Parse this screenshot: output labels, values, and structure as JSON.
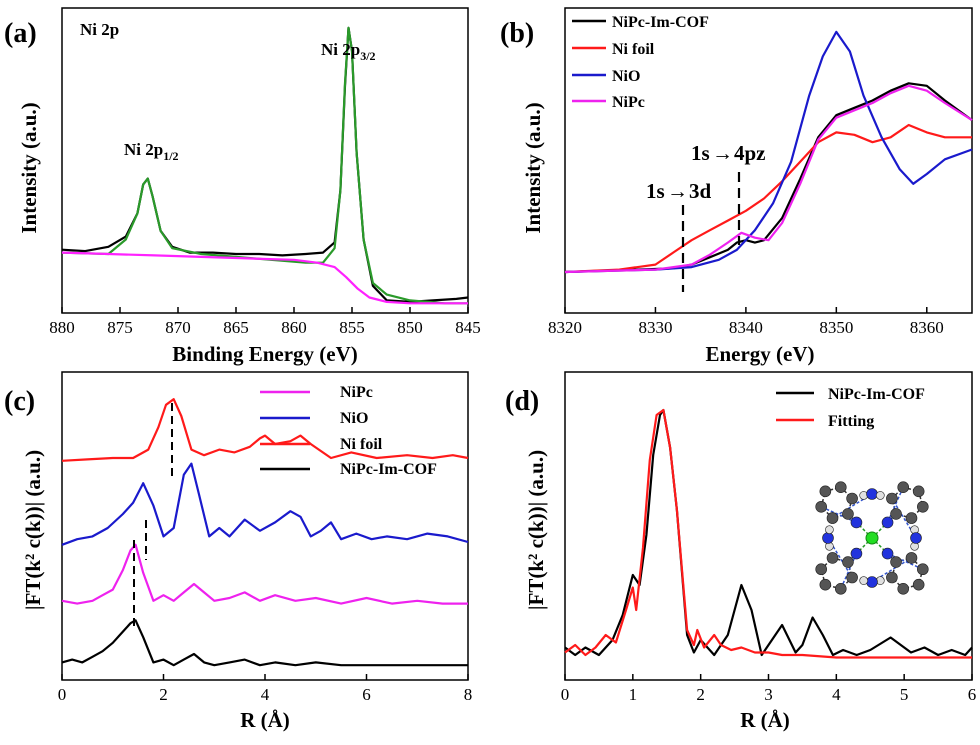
{
  "panels": {
    "a": {
      "letter": "(a)",
      "corner": "Ni 2p",
      "xlabel": "Binding Energy (eV)",
      "ylabel": "Intensity (a.u.)",
      "xticks": [
        "880",
        "875",
        "870",
        "865",
        "860",
        "855",
        "850",
        "845"
      ],
      "peak_major": "Ni 2p",
      "peak_major_sub": "3/2",
      "peak_minor": "Ni 2p",
      "peak_minor_sub": "1/2"
    },
    "b": {
      "letter": "(b)",
      "xlabel": "Energy (eV)",
      "ylabel": "Intensity (a.u.)",
      "xticks": [
        "8320",
        "8330",
        "8340",
        "8350",
        "8360"
      ],
      "ann1": "1s",
      "ann1b": "3d",
      "ann2": "1s",
      "ann2b": "4pz",
      "legend": [
        "NiPc-Im-COF",
        "Ni foil",
        "NiO",
        "NiPc"
      ]
    },
    "c": {
      "letter": "(c)",
      "xlabel": "R (Å)",
      "ylabel": "|FT(k² c(k))|  (a.u.)",
      "xticks": [
        "0",
        "2",
        "4",
        "6",
        "8"
      ],
      "legend": [
        "NiPc",
        "NiO",
        "Ni foil",
        "NiPc-Im-COF"
      ]
    },
    "d": {
      "letter": "(d)",
      "xlabel": "R (Å)",
      "ylabel": "|FT(k² c(k))|  (a.u.)",
      "xticks": [
        "0",
        "1",
        "2",
        "3",
        "4",
        "5",
        "6"
      ],
      "legend": [
        "NiPc-Im-COF",
        "Fitting"
      ]
    }
  },
  "colors": {
    "black": "#000000",
    "red": "#ff1a1a",
    "blue": "#1a1acc",
    "magenta": "#ee22ee",
    "green": "#2a9a2a",
    "pink": "#ff44ff"
  },
  "chart_data": [
    {
      "type": "line",
      "panel": "a",
      "x_reversed": true,
      "xlim": [
        880,
        845
      ],
      "xlabel": "Binding Energy (eV)",
      "ylabel": "Intensity (a.u.)",
      "series": [
        {
          "color": "#000000",
          "x": [
            880,
            878,
            876,
            874.5,
            873.5,
            873,
            872.6,
            872.2,
            871.5,
            870.5,
            869,
            867,
            865,
            863,
            861,
            859,
            857.5,
            856.5,
            856,
            855.6,
            855.3,
            855,
            854.6,
            854,
            853.2,
            852,
            850,
            848,
            846,
            845
          ],
          "y": [
            0.215,
            0.21,
            0.225,
            0.26,
            0.34,
            0.44,
            0.46,
            0.4,
            0.28,
            0.225,
            0.205,
            0.205,
            0.2,
            0.2,
            0.195,
            0.2,
            0.205,
            0.24,
            0.42,
            0.78,
            0.98,
            0.9,
            0.55,
            0.25,
            0.09,
            0.04,
            0.035,
            0.04,
            0.045,
            0.05
          ]
        },
        {
          "color": "#2a9a2a",
          "x": [
            880,
            876,
            874.5,
            873.5,
            873,
            872.6,
            872.2,
            871.5,
            870.5,
            868,
            865,
            862,
            859,
            857.5,
            856.5,
            856,
            855.6,
            855.3,
            855,
            854.6,
            854,
            853.2,
            852,
            850,
            847,
            845
          ],
          "y": [
            0.205,
            0.2,
            0.25,
            0.34,
            0.44,
            0.46,
            0.4,
            0.28,
            0.22,
            0.2,
            0.19,
            0.18,
            0.17,
            0.17,
            0.22,
            0.42,
            0.79,
            0.98,
            0.9,
            0.55,
            0.25,
            0.1,
            0.06,
            0.04,
            0.03,
            0.03
          ]
        },
        {
          "color": "#ff22ff",
          "x": [
            880,
            876,
            872,
            868,
            864,
            860,
            858,
            856.5,
            855.5,
            854.5,
            853.5,
            852,
            850,
            847,
            845
          ],
          "y": [
            0.205,
            0.2,
            0.195,
            0.19,
            0.185,
            0.18,
            0.17,
            0.155,
            0.12,
            0.08,
            0.05,
            0.035,
            0.03,
            0.03,
            0.03
          ]
        }
      ]
    },
    {
      "type": "line",
      "panel": "b",
      "xlim": [
        8320,
        8365
      ],
      "xlabel": "Energy (eV)",
      "ylabel": "Intensity (a.u.)",
      "series": [
        {
          "name": "NiPc-Im-COF",
          "color": "#000000",
          "x": [
            8320,
            8328,
            8332,
            8334,
            8336,
            8338,
            8339,
            8340,
            8341,
            8342,
            8344,
            8346,
            8348,
            8350,
            8352,
            8354,
            8356,
            8358,
            8360,
            8362,
            8365
          ],
          "y": [
            0.0,
            0.01,
            0.015,
            0.03,
            0.06,
            0.09,
            0.12,
            0.13,
            0.12,
            0.13,
            0.22,
            0.38,
            0.55,
            0.64,
            0.67,
            0.7,
            0.74,
            0.77,
            0.76,
            0.7,
            0.62
          ]
        },
        {
          "name": "Ni foil",
          "color": "#ff1a1a",
          "x": [
            8320,
            8326,
            8330,
            8332,
            8334,
            8336,
            8338,
            8340,
            8342,
            8344,
            8346,
            8348,
            8350,
            8352,
            8354,
            8356,
            8358,
            8360,
            8362,
            8365
          ],
          "y": [
            0.0,
            0.01,
            0.03,
            0.08,
            0.13,
            0.17,
            0.21,
            0.25,
            0.3,
            0.37,
            0.45,
            0.53,
            0.57,
            0.56,
            0.53,
            0.55,
            0.6,
            0.57,
            0.55,
            0.55
          ]
        },
        {
          "name": "NiO",
          "color": "#1a1acc",
          "x": [
            8320,
            8330,
            8334,
            8337,
            8339,
            8341,
            8343,
            8345,
            8347,
            8348.5,
            8350,
            8351.5,
            8353,
            8355,
            8357,
            8358.5,
            8360,
            8362,
            8365
          ],
          "y": [
            0.0,
            0.01,
            0.02,
            0.05,
            0.09,
            0.17,
            0.28,
            0.45,
            0.72,
            0.88,
            0.98,
            0.9,
            0.72,
            0.55,
            0.42,
            0.36,
            0.4,
            0.46,
            0.5
          ]
        },
        {
          "name": "NiPc",
          "color": "#ee22ee",
          "x": [
            8320,
            8330,
            8334,
            8336,
            8338,
            8339.5,
            8341,
            8342.5,
            8344,
            8346,
            8348,
            8350,
            8352,
            8354,
            8356,
            8358,
            8360,
            8362,
            8365
          ],
          "y": [
            0.0,
            0.01,
            0.03,
            0.07,
            0.12,
            0.16,
            0.14,
            0.13,
            0.2,
            0.36,
            0.54,
            0.63,
            0.66,
            0.69,
            0.73,
            0.76,
            0.74,
            0.69,
            0.62
          ]
        }
      ]
    },
    {
      "type": "line",
      "panel": "c",
      "xlim": [
        0,
        8
      ],
      "xlabel": "R (Å)",
      "ylabel": "|FT(k² c(k))|  (a.u.)",
      "series": [
        {
          "name": "NiPc",
          "color": "#ee22ee",
          "offset": 0.22,
          "x": [
            0,
            0.3,
            0.6,
            0.8,
            1.0,
            1.2,
            1.35,
            1.45,
            1.6,
            1.8,
            2.0,
            2.2,
            2.4,
            2.6,
            2.8,
            3.0,
            3.3,
            3.6,
            3.9,
            4.2,
            4.6,
            5.0,
            5.5,
            6.0,
            6.5,
            7.0,
            7.5,
            8.0
          ],
          "y": [
            0.02,
            0.01,
            0.02,
            0.04,
            0.06,
            0.13,
            0.2,
            0.22,
            0.12,
            0.02,
            0.04,
            0.02,
            0.05,
            0.08,
            0.05,
            0.02,
            0.03,
            0.05,
            0.02,
            0.04,
            0.02,
            0.03,
            0.01,
            0.03,
            0.01,
            0.02,
            0.01,
            0.01
          ]
        },
        {
          "name": "NiO",
          "color": "#1a1acc",
          "offset": 0.44,
          "x": [
            0,
            0.3,
            0.6,
            0.9,
            1.2,
            1.4,
            1.6,
            1.8,
            2.0,
            2.2,
            2.4,
            2.55,
            2.7,
            2.9,
            3.1,
            3.3,
            3.6,
            3.9,
            4.2,
            4.5,
            4.7,
            4.9,
            5.1,
            5.3,
            5.5,
            5.8,
            6.1,
            6.4,
            6.8,
            7.2,
            7.6,
            8.0
          ],
          "y": [
            0.0,
            0.02,
            0.03,
            0.06,
            0.11,
            0.15,
            0.22,
            0.14,
            0.03,
            0.06,
            0.25,
            0.29,
            0.18,
            0.03,
            0.06,
            0.03,
            0.09,
            0.05,
            0.08,
            0.12,
            0.1,
            0.03,
            0.05,
            0.08,
            0.02,
            0.04,
            0.02,
            0.03,
            0.02,
            0.04,
            0.03,
            0.01
          ]
        },
        {
          "name": "Ni foil",
          "color": "#ff1a1a",
          "offset": 0.74,
          "x": [
            0,
            0.5,
            1.0,
            1.4,
            1.7,
            1.9,
            2.05,
            2.2,
            2.35,
            2.55,
            2.8,
            3.1,
            3.4,
            3.7,
            3.9,
            4.0,
            4.2,
            4.5,
            4.7,
            4.9,
            5.3,
            5.7,
            6.2,
            6.8,
            7.3,
            7.7,
            8.0
          ],
          "y": [
            0.0,
            0.005,
            0.01,
            0.01,
            0.04,
            0.12,
            0.2,
            0.22,
            0.16,
            0.04,
            0.02,
            0.04,
            0.03,
            0.05,
            0.08,
            0.09,
            0.06,
            0.07,
            0.09,
            0.06,
            0.01,
            0.03,
            0.01,
            0.02,
            0.01,
            0.02,
            0.01
          ]
        },
        {
          "name": "NiPc-Im-COF",
          "color": "#000000",
          "offset": 0.0,
          "x": [
            0,
            0.2,
            0.4,
            0.6,
            0.8,
            1.0,
            1.2,
            1.35,
            1.45,
            1.6,
            1.8,
            2.0,
            2.2,
            2.4,
            2.6,
            2.8,
            3.0,
            3.3,
            3.6,
            3.9,
            4.2,
            4.6,
            5.0,
            5.5,
            6.0,
            6.5,
            7.0,
            7.5,
            8.0
          ],
          "y": [
            0.02,
            0.03,
            0.02,
            0.04,
            0.06,
            0.09,
            0.13,
            0.16,
            0.17,
            0.11,
            0.02,
            0.03,
            0.01,
            0.03,
            0.05,
            0.02,
            0.01,
            0.02,
            0.03,
            0.01,
            0.02,
            0.01,
            0.02,
            0.01,
            0.01,
            0.01,
            0.01,
            0.01,
            0.01
          ]
        }
      ]
    },
    {
      "type": "line",
      "panel": "d",
      "xlim": [
        0,
        6
      ],
      "xlabel": "R (Å)",
      "ylabel": "|FT(k² c(k))|  (a.u.)",
      "series": [
        {
          "name": "NiPc-Im-COF",
          "color": "#000000",
          "x": [
            0,
            0.15,
            0.3,
            0.5,
            0.7,
            0.85,
            1.0,
            1.1,
            1.2,
            1.3,
            1.4,
            1.45,
            1.55,
            1.65,
            1.8,
            1.9,
            2.0,
            2.2,
            2.4,
            2.6,
            2.75,
            2.9,
            3.0,
            3.2,
            3.4,
            3.5,
            3.65,
            3.8,
            3.95,
            4.1,
            4.3,
            4.5,
            4.8,
            5.1,
            5.3,
            5.5,
            5.7,
            5.9,
            6.0
          ],
          "y": [
            0.05,
            0.02,
            0.05,
            0.02,
            0.08,
            0.18,
            0.34,
            0.3,
            0.5,
            0.82,
            0.98,
            1.0,
            0.85,
            0.6,
            0.1,
            0.03,
            0.08,
            0.02,
            0.1,
            0.3,
            0.2,
            0.02,
            0.06,
            0.14,
            0.03,
            0.06,
            0.17,
            0.1,
            0.02,
            0.04,
            0.02,
            0.04,
            0.09,
            0.03,
            0.05,
            0.02,
            0.04,
            0.02,
            0.05
          ]
        },
        {
          "name": "Fitting",
          "color": "#ff1a1a",
          "x": [
            0,
            0.15,
            0.3,
            0.45,
            0.6,
            0.75,
            0.9,
            1.0,
            1.05,
            1.15,
            1.25,
            1.35,
            1.45,
            1.55,
            1.65,
            1.8,
            1.9,
            1.95,
            2.05,
            2.2,
            2.3,
            2.45,
            2.6,
            2.8,
            3.0,
            3.2,
            3.5,
            4.0,
            4.5,
            5.0,
            6.0
          ],
          "y": [
            0.03,
            0.06,
            0.02,
            0.05,
            0.1,
            0.07,
            0.2,
            0.29,
            0.2,
            0.45,
            0.8,
            0.98,
            1.0,
            0.85,
            0.6,
            0.12,
            0.06,
            0.12,
            0.05,
            0.1,
            0.06,
            0.04,
            0.05,
            0.03,
            0.03,
            0.02,
            0.02,
            0.01,
            0.01,
            0.01,
            0.01
          ]
        }
      ]
    }
  ]
}
